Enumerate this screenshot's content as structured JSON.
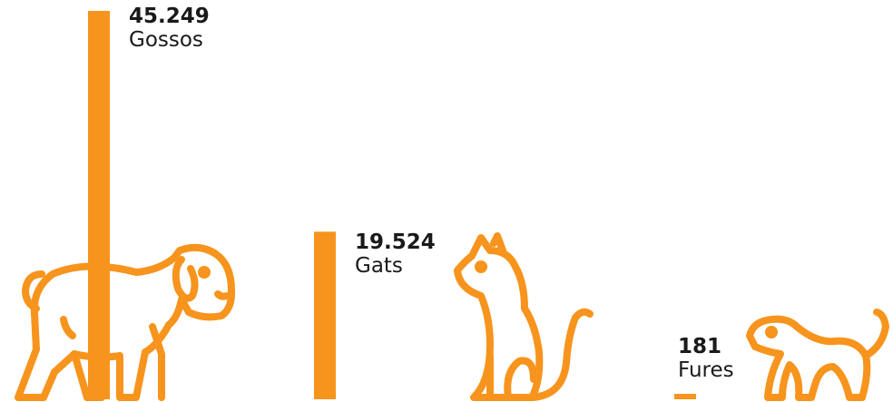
{
  "chart_data": {
    "type": "bar",
    "title": "",
    "xlabel": "",
    "ylabel": "",
    "categories": [
      "Gossos",
      "Gats",
      "Fures"
    ],
    "values": [
      45249,
      19524,
      181
    ],
    "value_labels": [
      "45.249",
      "19.524",
      "181"
    ],
    "icons": [
      "dog-icon",
      "cat-icon",
      "ferret-icon"
    ],
    "grid": false,
    "legend": "none"
  },
  "colors": {
    "bar": "#F7941D",
    "icon_stroke": "#F7941D",
    "text": "#1a1a1a",
    "background": "#ffffff"
  }
}
